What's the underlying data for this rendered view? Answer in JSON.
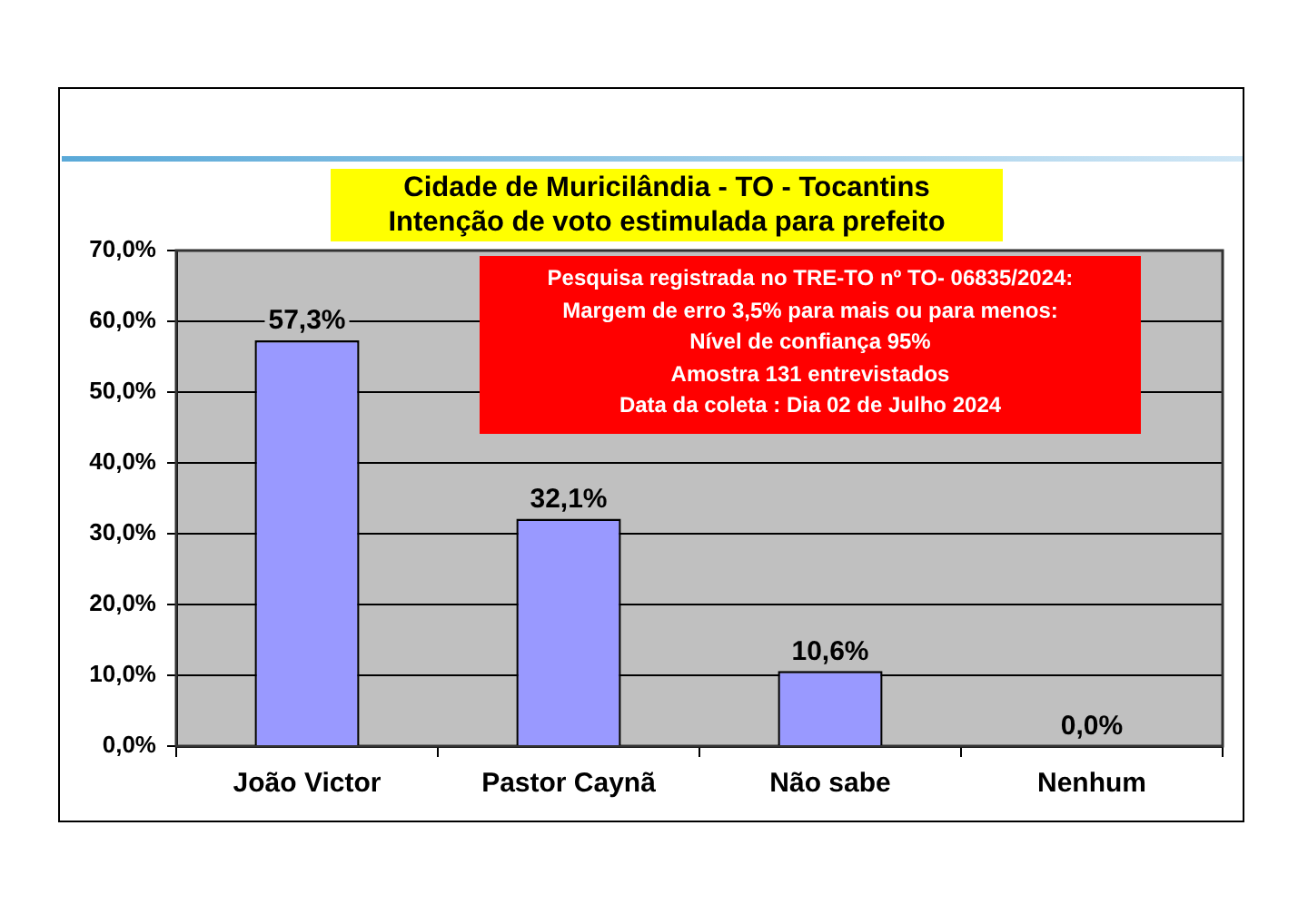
{
  "chart_data": {
    "type": "bar",
    "title": "Cidade de Muricilândia - TO - Tocantins",
    "subtitle": "Intenção de voto estimulada para prefeito",
    "categories": [
      "João Victor",
      "Pastor Caynã",
      "Não sabe",
      "Nenhum"
    ],
    "values": [
      57.3,
      32.1,
      10.6,
      0.0
    ],
    "color": "#9999ff",
    "value_labels": [
      "57,3%",
      "32,1%",
      "10,6%",
      "0,0%"
    ],
    "ylim": [
      0,
      70
    ],
    "yticks": [
      {
        "value": 0,
        "label": "0,0%"
      },
      {
        "value": 10,
        "label": "10,0%"
      },
      {
        "value": 20,
        "label": "20,0%"
      },
      {
        "value": 30,
        "label": "30,0%"
      },
      {
        "value": 40,
        "label": "40,0%"
      },
      {
        "value": 50,
        "label": "50,0%"
      },
      {
        "value": 60,
        "label": "60,0%"
      },
      {
        "value": 70,
        "label": "70,0%"
      }
    ],
    "grid": "y",
    "legend": false,
    "annotations": [
      "Pesquisa registrada no TRE-TO nº TO- 06835/2024:",
      "Margem de erro 3,5% para mais ou para menos:",
      "Nível de confiança 95%",
      "Amostra 131 entrevistados",
      "Data da coleta : Dia 02 de Julho 2024"
    ]
  }
}
